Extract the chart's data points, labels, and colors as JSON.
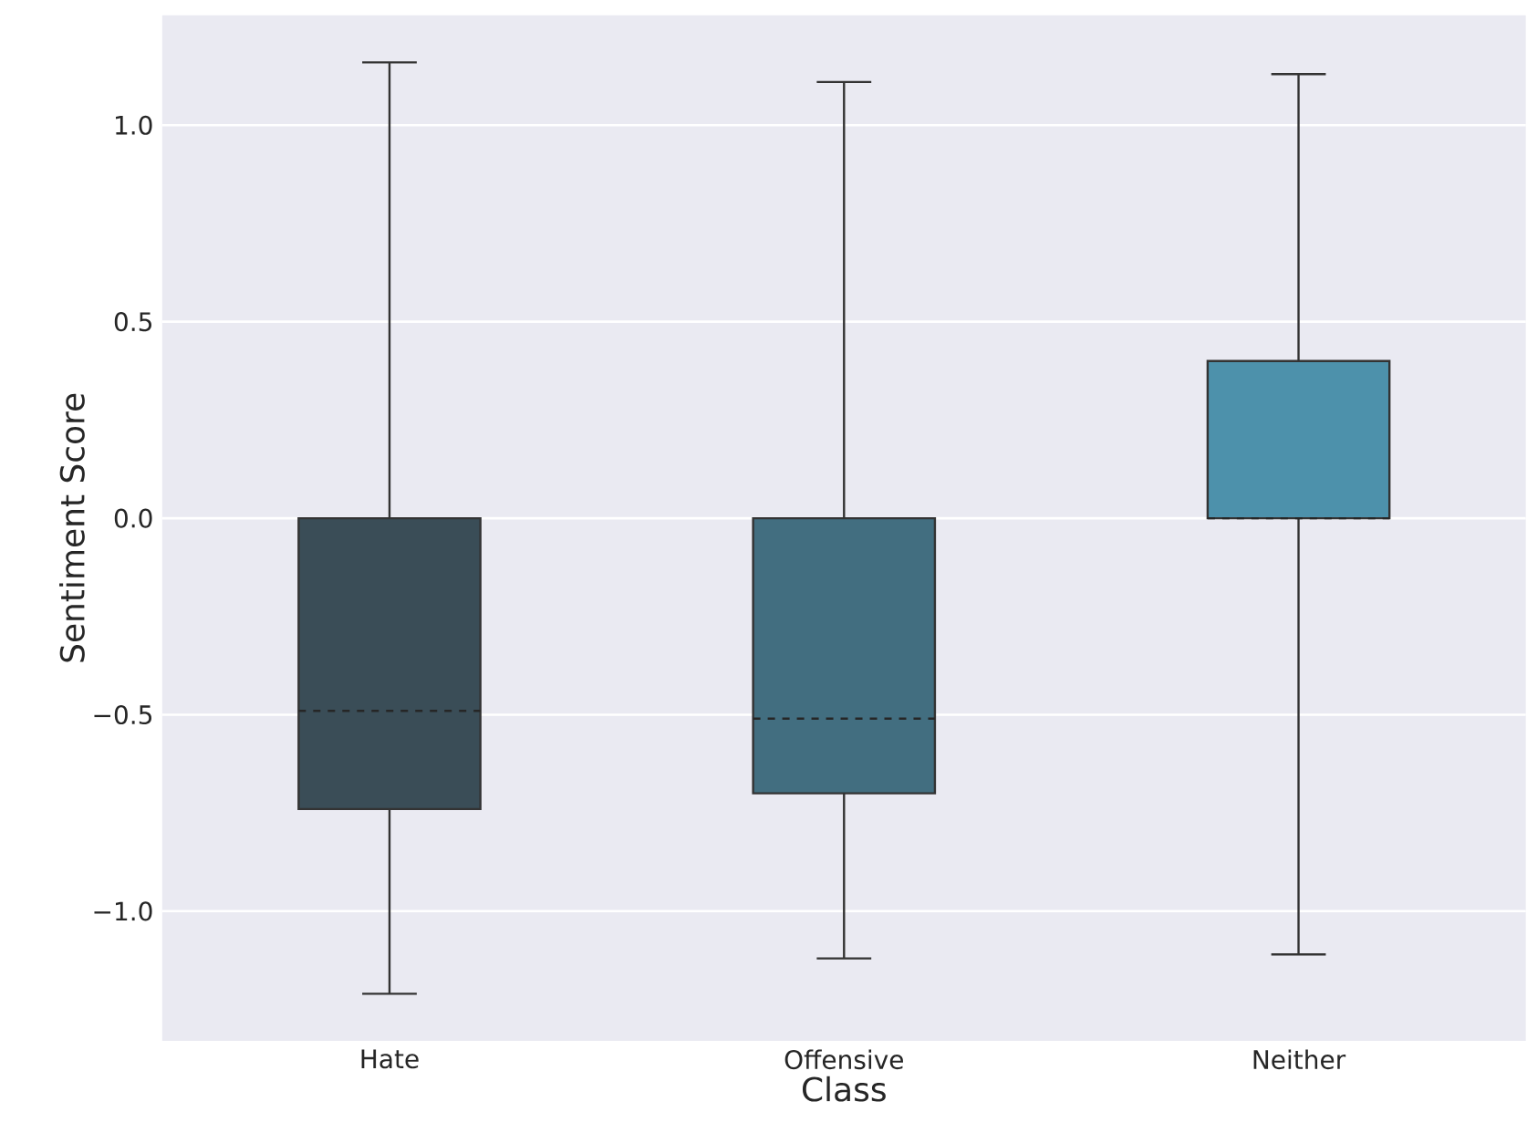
{
  "chart_data": {
    "type": "box",
    "xlabel": "Class",
    "ylabel": "Sentiment Score",
    "categories": [
      "Hate",
      "Offensive",
      "Neither"
    ],
    "colors": [
      "#3a4d57",
      "#426e80",
      "#4d91ab"
    ],
    "boxes": [
      {
        "low": -1.21,
        "q1": -0.74,
        "median": -0.49,
        "q3": 0.0,
        "high": 1.16
      },
      {
        "low": -1.12,
        "q1": -0.7,
        "median": -0.51,
        "q3": 0.0,
        "high": 1.11
      },
      {
        "low": -1.11,
        "q1": 0.0,
        "median": 0.0,
        "q3": 0.4,
        "high": 1.13
      }
    ],
    "ylim": [
      -1.33,
      1.28
    ],
    "yticks": [
      {
        "value": -1.0,
        "label": "−1.0"
      },
      {
        "value": -0.5,
        "label": "−0.5"
      },
      {
        "value": 0.0,
        "label": "0.0"
      },
      {
        "value": 0.5,
        "label": "0.5"
      },
      {
        "value": 1.0,
        "label": "1.0"
      }
    ],
    "grid": "y"
  }
}
